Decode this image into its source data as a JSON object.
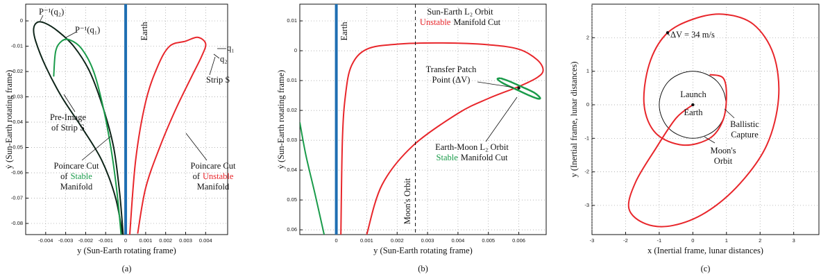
{
  "chart_data": [
    {
      "type": "line",
      "caption": "(a)",
      "xlabel": "y (Sun-Earth rotating frame)",
      "ylabel": "ẏ (Sun-Earth rotating frame)",
      "xlim": [
        -0.005,
        0.0051
      ],
      "ylim": [
        -0.0844,
        0.0066
      ],
      "xticks": [
        -0.004,
        -0.003,
        -0.002,
        -0.001,
        0,
        0.001,
        0.002,
        0.003,
        0.004
      ],
      "yticks": [
        0,
        -0.01,
        -0.02,
        -0.03,
        -0.04,
        -0.05,
        -0.06,
        -0.07,
        -0.08
      ],
      "grid": true,
      "series": [
        {
          "color": "#0d2418",
          "linewidth": 2,
          "x": [
            -0.0001,
            -0.0005,
            -0.0012,
            -0.0022,
            -0.0032,
            -0.004,
            -0.0045,
            -0.0046,
            -0.0044,
            -0.004,
            -0.0034,
            -0.0026,
            -0.0018,
            -0.0011,
            -0.0006,
            -0.0003,
            -0.0001
          ],
          "y": [
            -0.087,
            -0.07,
            -0.055,
            -0.042,
            -0.03,
            -0.018,
            -0.008,
            -0.003,
            -0.0005,
            -0.001,
            -0.004,
            -0.01,
            -0.02,
            -0.035,
            -0.05,
            -0.068,
            -0.087
          ]
        },
        {
          "color": "#1a9b4a",
          "linewidth": 2,
          "x": [
            -0.0036,
            -0.0035,
            -0.0032,
            -0.0028,
            -0.0022,
            -0.0016,
            -0.0011,
            -0.0007,
            -0.0004,
            -0.0002
          ],
          "y": [
            -0.022,
            -0.012,
            -0.008,
            -0.0075,
            -0.011,
            -0.02,
            -0.035,
            -0.052,
            -0.07,
            -0.087
          ]
        },
        {
          "name": "Earth",
          "color": "#1f6fb2",
          "linewidth": 4,
          "x": [
            0,
            0
          ],
          "y": [
            0.0066,
            -0.0844
          ]
        },
        {
          "color": "#e8262b",
          "linewidth": 2,
          "x": [
            0.0002,
            0.0005,
            0.001,
            0.0016,
            0.0022,
            0.003,
            0.0036,
            0.004,
            0.0038,
            0.0033,
            0.0025,
            0.0017,
            0.001,
            0.0006
          ],
          "y": [
            -0.085,
            -0.055,
            -0.032,
            -0.018,
            -0.01,
            -0.008,
            -0.0065,
            -0.009,
            -0.014,
            -0.022,
            -0.035,
            -0.05,
            -0.066,
            -0.084
          ]
        }
      ],
      "annotations": [
        {
          "lines": [
            [
              "P⁻¹(q₂)"
            ]
          ]
        },
        {
          "lines": [
            [
              "P⁻¹(q₁)"
            ]
          ]
        },
        {
          "lines": [
            [
              "q₁"
            ]
          ]
        },
        {
          "lines": [
            [
              "q₂"
            ]
          ]
        },
        {
          "lines": [
            [
              "Strip S"
            ]
          ]
        },
        {
          "lines": [
            [
              "Pre-Image"
            ],
            [
              "of Strip S"
            ]
          ]
        },
        {
          "lines": [
            [
              "Poincare Cut"
            ],
            [
              "of",
              {
                "text": "Stable",
                "color": "#1a9b4a"
              }
            ],
            [
              "Manifold"
            ]
          ]
        },
        {
          "lines": [
            [
              "Poincare Cut"
            ],
            [
              "of",
              {
                "text": "Unstable",
                "color": "#e8262b"
              }
            ],
            [
              "Manifold"
            ]
          ]
        }
      ]
    },
    {
      "type": "line",
      "caption": "(b)",
      "xlabel": "y (Sun-Earth rotating frame)",
      "ylabel": "ẏ (Sun-Earth rotating frame)",
      "xlim": [
        -0.0012,
        0.0069
      ],
      "ylim": [
        -0.0616,
        0.0156
      ],
      "xticks": [
        0,
        0.001,
        0.002,
        0.003,
        0.004,
        0.005,
        0.006
      ],
      "yticks": [
        {
          "value": 0.01,
          "label": "0.01"
        },
        0,
        {
          "value": -0.01,
          "label": "0.01"
        },
        {
          "value": -0.02,
          "label": "0.02"
        },
        {
          "value": -0.03,
          "label": "0.03"
        },
        {
          "value": -0.04,
          "label": "0.04"
        },
        {
          "value": -0.05,
          "label": "0.05"
        },
        {
          "value": -0.06,
          "label": "0.06"
        }
      ],
      "grid": true,
      "series": [
        {
          "color": "#e8262b",
          "linewidth": 2,
          "x": [
            0.001,
            0.0015,
            0.0025,
            0.004,
            0.005,
            0.006,
            0.0066,
            0.0068,
            0.0066,
            0.006,
            0.005,
            0.0035,
            0.002,
            0.001,
            0.0005,
            0.0003,
            0.0002,
            0.00015
          ],
          "y": [
            -0.0616,
            -0.045,
            -0.032,
            -0.021,
            -0.016,
            -0.012,
            -0.009,
            -0.0065,
            -0.003,
            0.0005,
            0.002,
            0.0026,
            0.0022,
            0.0005,
            -0.005,
            -0.015,
            -0.03,
            -0.0616
          ]
        },
        {
          "color": "#1a9b4a",
          "linewidth": 2,
          "x": [
            -0.0012,
            -0.001,
            -0.0007,
            -0.0004
          ],
          "y": [
            -0.024,
            -0.035,
            -0.048,
            -0.0616
          ]
        },
        {
          "color": "#1a9b4a",
          "linewidth": 2.5,
          "x": [
            0.0054,
            0.0057,
            0.0061,
            0.0065,
            0.0067,
            0.0066,
            0.0063,
            0.0059,
            0.0055,
            0.0053,
            0.0054
          ],
          "y": [
            -0.0092,
            -0.0103,
            -0.0121,
            -0.014,
            -0.0158,
            -0.016,
            -0.0148,
            -0.0129,
            -0.011,
            -0.0095,
            -0.0092
          ]
        },
        {
          "name": "Earth",
          "color": "#1f6fb2",
          "linewidth": 4,
          "x": [
            0,
            0
          ],
          "y": [
            0.0156,
            -0.0616
          ]
        },
        {
          "name": "Moon's Orbit",
          "color": "#111111",
          "linewidth": 1,
          "dashed": true,
          "x": [
            0.0026,
            0.0026
          ],
          "y": [
            0.0156,
            -0.0616
          ]
        },
        {
          "color": "#111111",
          "marker": "dot",
          "x": [
            0.006
          ],
          "y": [
            -0.0125
          ]
        }
      ],
      "annotations": [
        {
          "lines": [
            [
              "Sun-Earth L₂ Orbit"
            ],
            [
              {
                "text": "Unstable",
                "color": "#e8262b"
              },
              "Manifold Cut"
            ]
          ]
        },
        {
          "lines": [
            [
              "Transfer Patch"
            ],
            [
              "Point (ΔV)"
            ]
          ]
        },
        {
          "lines": [
            [
              "Earth-Moon L₂ Orbit"
            ],
            [
              {
                "text": "Stable",
                "color": "#1a9b4a"
              },
              "Manifold Cut"
            ]
          ]
        }
      ]
    },
    {
      "type": "line",
      "caption": "(c)",
      "xlabel": "x (Inertial frame, lunar distances)",
      "ylabel": "y (Inertial frame, lunar distances)",
      "xlim": [
        -3,
        3.75
      ],
      "ylim": [
        -3.87,
        3.0
      ],
      "xticks": [
        -3,
        -2,
        -1,
        0,
        1,
        2,
        3
      ],
      "yticks": [
        -3,
        -2,
        -1,
        0,
        1,
        2
      ],
      "grid": true,
      "series": [
        {
          "color": "#111111",
          "linewidth": 1,
          "x": [
            1,
            0.92,
            0.71,
            0.38,
            0,
            -0.38,
            -0.71,
            -0.92,
            -1,
            -0.92,
            -0.71,
            -0.38,
            0,
            0.38,
            0.71,
            0.92,
            1
          ],
          "y": [
            0,
            0.38,
            0.71,
            0.92,
            1,
            0.92,
            0.71,
            0.38,
            0,
            -0.38,
            -0.71,
            -0.92,
            -1,
            -0.92,
            -0.71,
            -0.38,
            0
          ]
        },
        {
          "color": "#e8262b",
          "linewidth": 2,
          "x": [
            0,
            -0.5,
            -1.1,
            -1.7,
            -1.9,
            -1.4,
            -0.6,
            0.4,
            1.4,
            2.2,
            2.55,
            2.4,
            1.8,
            0.9,
            0,
            -0.8,
            -1.3,
            -1.45,
            -1.1,
            -0.3,
            0.5,
            0.9,
            1.0,
            0.9,
            0.5
          ],
          "y": [
            0,
            -0.4,
            -1.3,
            -2.3,
            -3.1,
            -3.55,
            -3.6,
            -3.2,
            -2.35,
            -1.2,
            0.2,
            1.5,
            2.4,
            2.7,
            2.55,
            2.1,
            1.2,
            0,
            -0.85,
            -1.2,
            -1.0,
            -0.45,
            0.3,
            0.8,
            0.9
          ]
        },
        {
          "color": "#111111",
          "marker": "dot",
          "x": [
            0
          ],
          "y": [
            0
          ]
        },
        {
          "color": "#111111",
          "marker": "dot",
          "x": [
            -0.75
          ],
          "y": [
            2.15
          ]
        }
      ],
      "annotations": [
        {
          "lines": [
            [
              "ΔV = 34 m/s"
            ]
          ]
        },
        {
          "lines": [
            [
              "Launch"
            ]
          ]
        },
        {
          "lines": [
            [
              "Earth"
            ]
          ]
        },
        {
          "lines": [
            [
              "Ballistic"
            ],
            [
              "Capture"
            ]
          ]
        },
        {
          "lines": [
            [
              "Moon's"
            ],
            [
              "Orbit"
            ]
          ]
        }
      ]
    }
  ]
}
